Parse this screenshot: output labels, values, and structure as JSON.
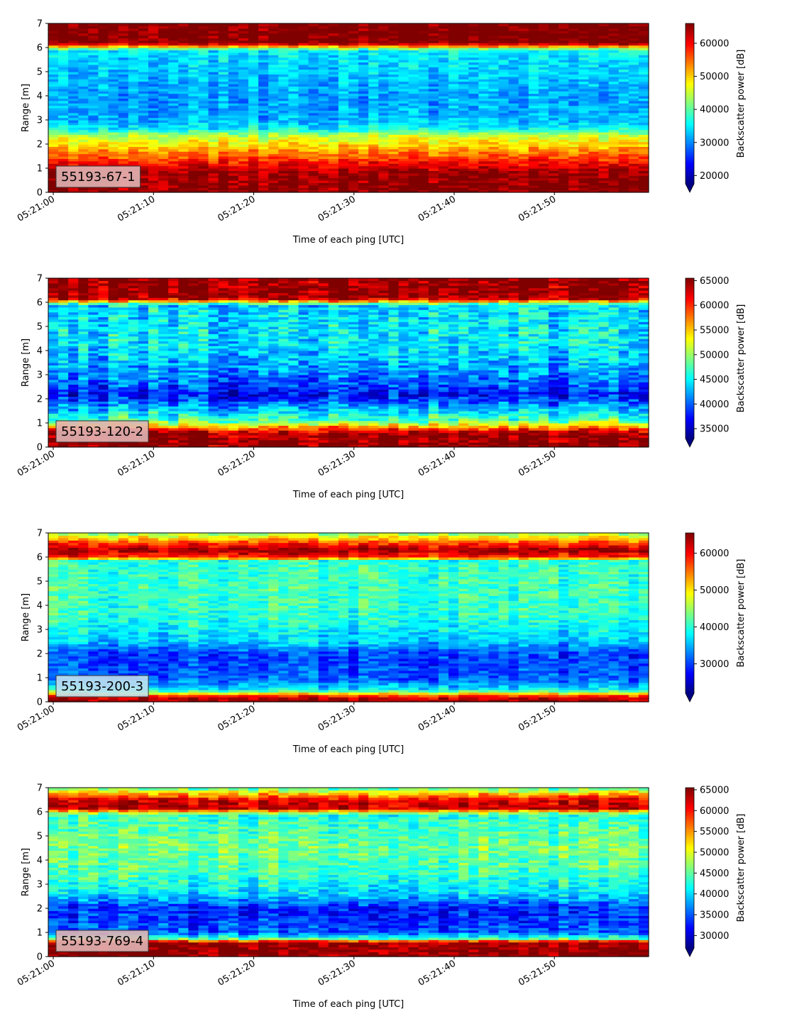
{
  "chart_data": [
    {
      "type": "heatmap",
      "label": "55193-67-1",
      "label_bg": "#e0b4b4",
      "xlabel": "Time of each ping [UTC]",
      "ylabel": "Range [m]",
      "xticks": [
        "05:21:00",
        "05:21:10",
        "05:21:20",
        "05:21:30",
        "05:21:40",
        "05:21:50"
      ],
      "xlim": [
        "05:20:59.5",
        "05:21:59.4"
      ],
      "yticks": [
        0,
        1,
        2,
        3,
        4,
        5,
        6,
        7
      ],
      "ylim": [
        0,
        7
      ],
      "colorbar": {
        "label": "Backscatter power [dB]",
        "ticks": [
          20000,
          30000,
          40000,
          50000,
          60000
        ],
        "vmin": 17500,
        "vmax": 66000,
        "colormap": "jet",
        "extend": "min"
      },
      "profile": [
        {
          "range": 0.2,
          "value": 65000
        },
        {
          "range": 0.5,
          "value": 65000
        },
        {
          "range": 0.9,
          "value": 64000
        },
        {
          "range": 1.1,
          "value": 61000
        },
        {
          "range": 1.4,
          "value": 57000
        },
        {
          "range": 1.7,
          "value": 53000
        },
        {
          "range": 2.0,
          "value": 49000
        },
        {
          "range": 2.4,
          "value": 44000
        },
        {
          "range": 2.6,
          "value": 36000
        },
        {
          "range": 3.0,
          "value": 32000
        },
        {
          "range": 4.0,
          "value": 31000
        },
        {
          "range": 5.0,
          "value": 33000
        },
        {
          "range": 5.9,
          "value": 35000
        },
        {
          "range": 6.05,
          "value": 52000
        },
        {
          "range": 6.2,
          "value": 66000
        },
        {
          "range": 7.0,
          "value": 66000
        }
      ]
    },
    {
      "type": "heatmap",
      "label": "55193-120-2",
      "label_bg": "#e0b4b4",
      "xlabel": "Time of each ping [UTC]",
      "ylabel": "Range [m]",
      "xticks": [
        "05:21:00",
        "05:21:10",
        "05:21:20",
        "05:21:30",
        "05:21:40",
        "05:21:50"
      ],
      "xlim": [
        "05:20:59.5",
        "05:21:59.4"
      ],
      "yticks": [
        0,
        1,
        2,
        3,
        4,
        5,
        6,
        7
      ],
      "ylim": [
        0,
        7
      ],
      "colorbar": {
        "label": "Backscatter power [dB]",
        "ticks": [
          35000,
          40000,
          45000,
          50000,
          55000,
          60000,
          65000
        ],
        "vmin": 33000,
        "vmax": 65500,
        "colormap": "jet",
        "extend": "min"
      },
      "profile": [
        {
          "range": 0.2,
          "value": 65000
        },
        {
          "range": 0.6,
          "value": 65000
        },
        {
          "range": 0.85,
          "value": 56000
        },
        {
          "range": 1.1,
          "value": 48000
        },
        {
          "range": 1.5,
          "value": 44000
        },
        {
          "range": 1.9,
          "value": 40000
        },
        {
          "range": 2.2,
          "value": 37000
        },
        {
          "range": 2.6,
          "value": 40000
        },
        {
          "range": 3.5,
          "value": 43000
        },
        {
          "range": 4.5,
          "value": 45000
        },
        {
          "range": 5.9,
          "value": 44000
        },
        {
          "range": 6.1,
          "value": 60000
        },
        {
          "range": 6.2,
          "value": 65000
        },
        {
          "range": 7.0,
          "value": 65000
        }
      ]
    },
    {
      "type": "heatmap",
      "label": "55193-200-3",
      "label_bg": "#bfe0f0",
      "xlabel": "Time of each ping [UTC]",
      "ylabel": "Range [m]",
      "xticks": [
        "05:21:00",
        "05:21:10",
        "05:21:20",
        "05:21:30",
        "05:21:40",
        "05:21:50"
      ],
      "xlim": [
        "05:20:59.5",
        "05:21:59.4"
      ],
      "yticks": [
        0,
        1,
        2,
        3,
        4,
        5,
        6,
        7
      ],
      "ylim": [
        0,
        7
      ],
      "colorbar": {
        "label": "Backscatter power [dB]",
        "ticks": [
          30000,
          40000,
          50000,
          60000
        ],
        "vmin": 22000,
        "vmax": 65500,
        "colormap": "jet",
        "extend": "min"
      },
      "profile": [
        {
          "range": 0.0,
          "value": 65000
        },
        {
          "range": 0.2,
          "value": 62000
        },
        {
          "range": 0.35,
          "value": 50000
        },
        {
          "range": 0.5,
          "value": 38000
        },
        {
          "range": 1.0,
          "value": 31000
        },
        {
          "range": 2.0,
          "value": 30000
        },
        {
          "range": 2.5,
          "value": 36000
        },
        {
          "range": 3.5,
          "value": 40000
        },
        {
          "range": 5.0,
          "value": 41000
        },
        {
          "range": 5.85,
          "value": 40000
        },
        {
          "range": 6.0,
          "value": 58000
        },
        {
          "range": 6.3,
          "value": 64000
        },
        {
          "range": 6.6,
          "value": 57000
        },
        {
          "range": 7.0,
          "value": 44000
        }
      ]
    },
    {
      "type": "heatmap",
      "label": "55193-769-4",
      "label_bg": "#e0b4b4",
      "xlabel": "Time of each ping [UTC]",
      "ylabel": "Range [m]",
      "xticks": [
        "05:21:00",
        "05:21:10",
        "05:21:20",
        "05:21:30",
        "05:21:40",
        "05:21:50"
      ],
      "xlim": [
        "05:20:59.5",
        "05:21:59.4"
      ],
      "yticks": [
        0,
        1,
        2,
        3,
        4,
        5,
        6,
        7
      ],
      "ylim": [
        0,
        7
      ],
      "colorbar": {
        "label": "Backscatter power [dB]",
        "ticks": [
          30000,
          35000,
          40000,
          45000,
          50000,
          55000,
          60000,
          65000
        ],
        "vmin": 27000,
        "vmax": 65500,
        "colormap": "jet",
        "extend": "min"
      },
      "profile": [
        {
          "range": 0.2,
          "value": 65000
        },
        {
          "range": 0.6,
          "value": 65000
        },
        {
          "range": 0.75,
          "value": 45000
        },
        {
          "range": 1.0,
          "value": 35000
        },
        {
          "range": 2.0,
          "value": 33000
        },
        {
          "range": 2.6,
          "value": 40000
        },
        {
          "range": 3.5,
          "value": 44000
        },
        {
          "range": 4.5,
          "value": 46000
        },
        {
          "range": 5.9,
          "value": 43000
        },
        {
          "range": 6.15,
          "value": 63000
        },
        {
          "range": 6.5,
          "value": 62000
        },
        {
          "range": 6.8,
          "value": 52000
        },
        {
          "range": 7.0,
          "value": 44000
        }
      ]
    }
  ]
}
